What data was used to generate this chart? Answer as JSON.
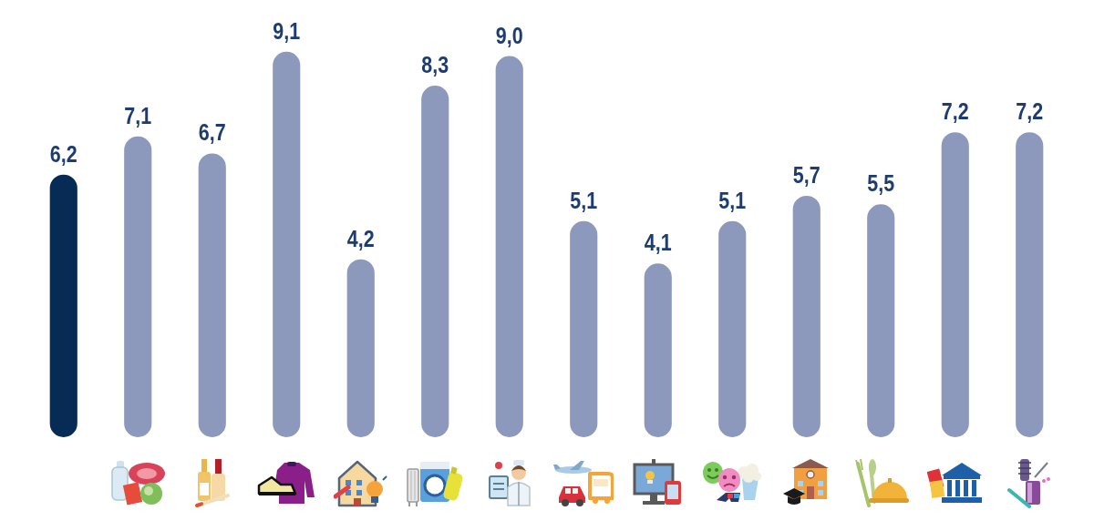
{
  "chart_data": {
    "type": "bar",
    "categories": [
      null,
      null,
      null,
      null,
      null,
      null,
      null,
      null,
      null,
      null,
      null,
      null,
      null,
      null
    ],
    "values": [
      6.2,
      7.1,
      6.7,
      9.1,
      4.2,
      8.3,
      9.0,
      5.1,
      4.1,
      5.1,
      5.7,
      5.5,
      7.2,
      7.2
    ],
    "colors": [
      "#062b55",
      "#8c99bd",
      "#8c99bd",
      "#8c99bd",
      "#8c99bd",
      "#8c99bd",
      "#8c99bd",
      "#8c99bd",
      "#8c99bd",
      "#8c99bd",
      "#8c99bd",
      "#8c99bd",
      "#8c99bd",
      "#8c99bd"
    ],
    "value_labels": [
      "6,2",
      "7,1",
      "6,7",
      "9,1",
      "4,2",
      "8,3",
      "9,0",
      "5,1",
      "4,1",
      "5,1",
      "5,7",
      "5,5",
      "7,2",
      "7,2"
    ],
    "grid": false,
    "legend": false,
    "tick_labels": false
  }
}
